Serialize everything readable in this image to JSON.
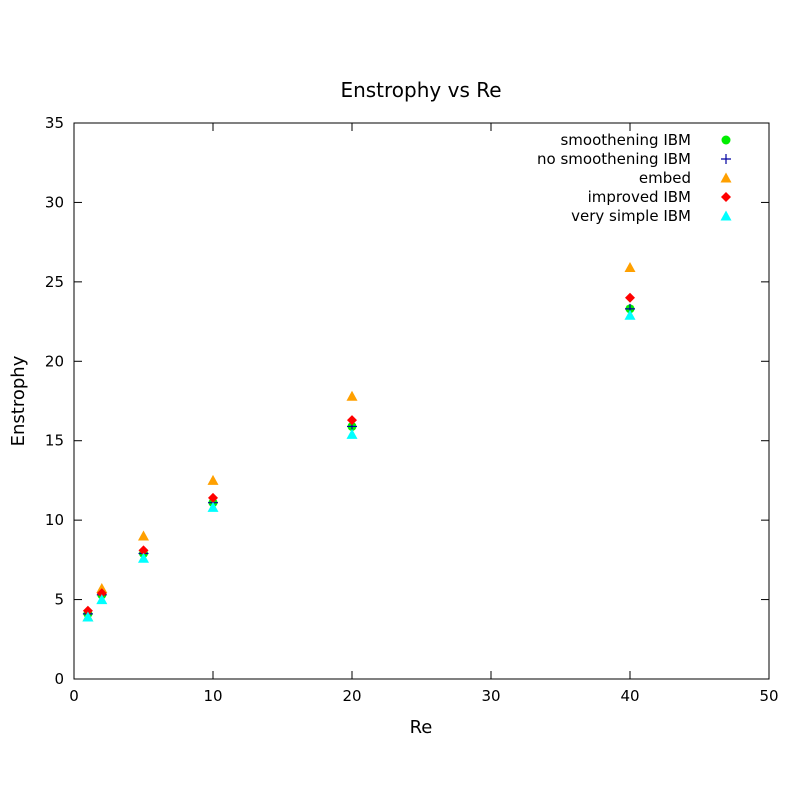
{
  "chart_data": {
    "type": "scatter",
    "title": "Enstrophy vs Re",
    "xlabel": "Re",
    "ylabel": "Enstrophy",
    "xlim": [
      0,
      50
    ],
    "ylim": [
      0,
      35
    ],
    "xticks": [
      0,
      10,
      20,
      30,
      40,
      50
    ],
    "yticks": [
      0,
      5,
      10,
      15,
      20,
      25,
      30,
      35
    ],
    "grid": false,
    "legend_position": "top-right",
    "series": [
      {
        "name": "smoothening IBM",
        "marker": "circle",
        "color": "#00ee00",
        "points": [
          [
            1,
            4.1
          ],
          [
            2,
            5.3
          ],
          [
            5,
            7.9
          ],
          [
            10,
            11.1
          ],
          [
            20,
            15.9
          ],
          [
            40,
            23.3
          ]
        ]
      },
      {
        "name": "no smoothening IBM",
        "marker": "plus",
        "color": "#0000a0",
        "points": [
          [
            1,
            4.1
          ],
          [
            2,
            5.3
          ],
          [
            5,
            7.9
          ],
          [
            10,
            11.1
          ],
          [
            20,
            15.9
          ],
          [
            40,
            23.3
          ]
        ]
      },
      {
        "name": "embed",
        "marker": "triangle",
        "color": "#ffa000",
        "points": [
          [
            1,
            3.9
          ],
          [
            2,
            5.7
          ],
          [
            5,
            9.0
          ],
          [
            10,
            12.5
          ],
          [
            20,
            17.8
          ],
          [
            40,
            25.9
          ]
        ]
      },
      {
        "name": "improved IBM",
        "marker": "diamond",
        "color": "#ff0000",
        "points": [
          [
            1,
            4.3
          ],
          [
            2,
            5.4
          ],
          [
            5,
            8.1
          ],
          [
            10,
            11.4
          ],
          [
            20,
            16.3
          ],
          [
            40,
            24.0
          ]
        ]
      },
      {
        "name": "very simple IBM",
        "marker": "triangle",
        "color": "#00ffff",
        "points": [
          [
            1,
            3.9
          ],
          [
            2,
            5.0
          ],
          [
            5,
            7.6
          ],
          [
            10,
            10.8
          ],
          [
            20,
            15.4
          ],
          [
            40,
            22.9
          ]
        ]
      }
    ]
  }
}
